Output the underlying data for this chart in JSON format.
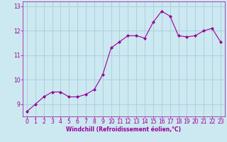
{
  "x": [
    0,
    1,
    2,
    3,
    4,
    5,
    6,
    7,
    8,
    9,
    10,
    11,
    12,
    13,
    14,
    15,
    16,
    17,
    18,
    19,
    20,
    21,
    22,
    23
  ],
  "y": [
    8.7,
    9.0,
    9.3,
    9.5,
    9.5,
    9.3,
    9.3,
    9.4,
    9.6,
    10.2,
    11.3,
    11.55,
    11.8,
    11.8,
    11.7,
    12.35,
    12.8,
    12.6,
    11.8,
    11.75,
    11.8,
    12.0,
    12.1,
    11.55
  ],
  "line_color": "#990099",
  "marker": "D",
  "marker_size": 2.0,
  "bg_color": "#cce8f0",
  "grid_color": "#aaccdd",
  "xlabel": "Windchill (Refroidissement éolien,°C)",
  "ylim": [
    8.5,
    13.2
  ],
  "xlim": [
    -0.5,
    23.5
  ],
  "yticks": [
    9,
    10,
    11,
    12,
    13
  ],
  "xticks": [
    0,
    1,
    2,
    3,
    4,
    5,
    6,
    7,
    8,
    9,
    10,
    11,
    12,
    13,
    14,
    15,
    16,
    17,
    18,
    19,
    20,
    21,
    22,
    23
  ],
  "label_fontsize": 5.5,
  "tick_fontsize": 5.5
}
